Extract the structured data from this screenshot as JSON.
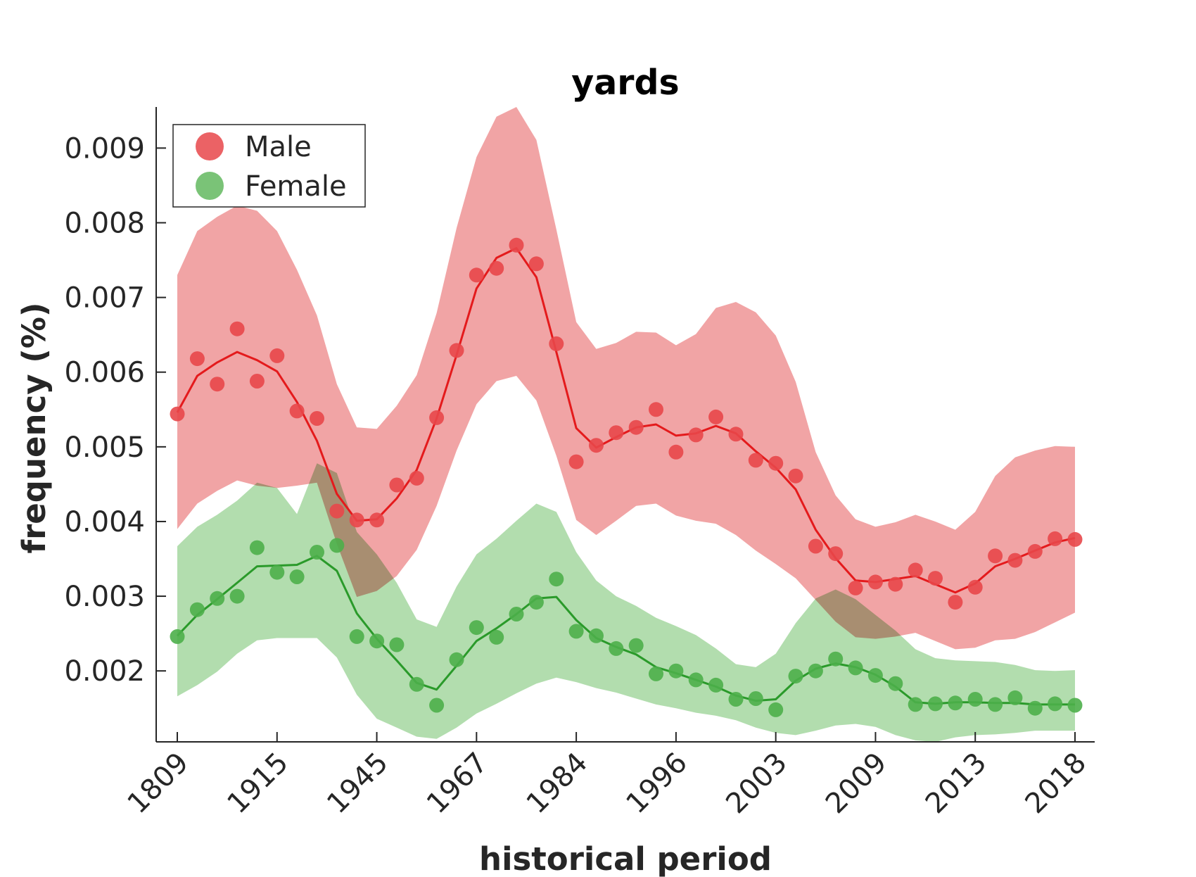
{
  "chart_data": {
    "type": "line",
    "title": "yards",
    "xlabel": "historical period",
    "ylabel": "frequency (%)",
    "ylim": [
      0.00105,
      0.00955
    ],
    "yticks": [
      "0.002",
      "0.003",
      "0.004",
      "0.005",
      "0.006",
      "0.007",
      "0.008",
      "0.009"
    ],
    "ytick_values": [
      0.002,
      0.003,
      0.004,
      0.005,
      0.006,
      0.007,
      0.008,
      0.009
    ],
    "xticks": [
      "1809",
      "1915",
      "1945",
      "1967",
      "1984",
      "1996",
      "2003",
      "2009",
      "2013",
      "2018"
    ],
    "xtick_index": [
      0,
      5,
      10,
      15,
      20,
      25,
      30,
      35,
      40,
      45
    ],
    "n_points": 46,
    "legend_position": "top-left",
    "grid": false,
    "series": [
      {
        "name": "Male",
        "color": "#e41a1c",
        "point_color": "#e8474a",
        "band_color": "#f09a9b",
        "points": [
          0.00544,
          0.00618,
          0.00584,
          0.00658,
          0.00588,
          0.00622,
          0.00548,
          0.00538,
          0.00414,
          0.00402,
          0.00402,
          0.00449,
          0.00458,
          0.00539,
          0.00629,
          0.0073,
          0.00739,
          0.0077,
          0.00745,
          0.00638,
          0.0048,
          0.00502,
          0.00519,
          0.00526,
          0.0055,
          0.00493,
          0.00516,
          0.0054,
          0.00517,
          0.00482,
          0.00478,
          0.00461,
          0.00367,
          0.00357,
          0.00311,
          0.00319,
          0.00316,
          0.00335,
          0.00324,
          0.00292,
          0.00312,
          0.00354,
          0.00348,
          0.0036,
          0.00377,
          0.00376
        ],
        "trend": [
          0.00546,
          0.00595,
          0.00613,
          0.00627,
          0.00616,
          0.00601,
          0.0056,
          0.00508,
          0.00437,
          0.00401,
          0.00403,
          0.00431,
          0.00469,
          0.00538,
          0.00623,
          0.00712,
          0.00753,
          0.00766,
          0.00727,
          0.00627,
          0.00525,
          0.00499,
          0.00513,
          0.00526,
          0.0053,
          0.00515,
          0.00518,
          0.00528,
          0.00518,
          0.00494,
          0.00472,
          0.00443,
          0.00389,
          0.00351,
          0.00321,
          0.00319,
          0.00323,
          0.00327,
          0.00316,
          0.00305,
          0.00317,
          0.0034,
          0.0035,
          0.00361,
          0.00372,
          0.00378
        ],
        "band_upper": [
          0.0073,
          0.00789,
          0.00808,
          0.00823,
          0.00816,
          0.00789,
          0.00737,
          0.00676,
          0.00584,
          0.00526,
          0.00524,
          0.00555,
          0.00596,
          0.00679,
          0.00793,
          0.00888,
          0.00942,
          0.00955,
          0.00911,
          0.00791,
          0.00667,
          0.00631,
          0.00639,
          0.00654,
          0.00653,
          0.00636,
          0.00651,
          0.00686,
          0.00694,
          0.0068,
          0.00649,
          0.00587,
          0.00493,
          0.00435,
          0.00403,
          0.00393,
          0.00399,
          0.00409,
          0.004,
          0.00389,
          0.00413,
          0.00461,
          0.00486,
          0.00495,
          0.00501,
          0.005
        ],
        "band_lower": [
          0.0039,
          0.00424,
          0.00441,
          0.00455,
          0.00448,
          0.00445,
          0.00448,
          0.00452,
          0.0037,
          0.00299,
          0.00307,
          0.00327,
          0.00362,
          0.00421,
          0.00495,
          0.00557,
          0.00588,
          0.00595,
          0.00562,
          0.00488,
          0.00402,
          0.00382,
          0.00401,
          0.00421,
          0.00424,
          0.00408,
          0.00401,
          0.00397,
          0.00382,
          0.00361,
          0.00343,
          0.00324,
          0.00295,
          0.00266,
          0.00245,
          0.00243,
          0.00246,
          0.00251,
          0.0024,
          0.00229,
          0.00231,
          0.00241,
          0.00243,
          0.00252,
          0.00265,
          0.00278
        ]
      },
      {
        "name": "Female",
        "color": "#2a9a2a",
        "point_color": "#4daf4a",
        "band_color": "#aad9a5",
        "points": [
          0.00246,
          0.00282,
          0.00297,
          0.003,
          0.00365,
          0.00332,
          0.00326,
          0.00359,
          0.00368,
          0.00246,
          0.0024,
          0.00235,
          0.00182,
          0.00154,
          0.00215,
          0.00258,
          0.00245,
          0.00276,
          0.00292,
          0.00323,
          0.00253,
          0.00247,
          0.0023,
          0.00234,
          0.00196,
          0.002,
          0.00188,
          0.00181,
          0.00162,
          0.00163,
          0.00148,
          0.00193,
          0.002,
          0.00216,
          0.00204,
          0.00194,
          0.00183,
          0.00155,
          0.00156,
          0.00157,
          0.00162,
          0.00155,
          0.00164,
          0.0015,
          0.00156,
          0.00154
        ],
        "trend": [
          0.00247,
          0.00275,
          0.00296,
          0.00318,
          0.0034,
          0.00341,
          0.00342,
          0.00354,
          0.00334,
          0.00277,
          0.00243,
          0.00214,
          0.00184,
          0.00175,
          0.00207,
          0.0024,
          0.00257,
          0.00276,
          0.00297,
          0.00299,
          0.00268,
          0.00244,
          0.00232,
          0.00222,
          0.00205,
          0.00197,
          0.00188,
          0.00179,
          0.00167,
          0.0016,
          0.00162,
          0.00187,
          0.00203,
          0.0021,
          0.00205,
          0.00195,
          0.00179,
          0.00158,
          0.00156,
          0.00158,
          0.00158,
          0.00157,
          0.00157,
          0.00155,
          0.00155,
          0.00155
        ],
        "band_upper": [
          0.00367,
          0.00393,
          0.00409,
          0.00428,
          0.00452,
          0.00445,
          0.0041,
          0.00478,
          0.00465,
          0.00386,
          0.00356,
          0.00318,
          0.00269,
          0.00259,
          0.00313,
          0.00356,
          0.00377,
          0.00401,
          0.00424,
          0.00413,
          0.00359,
          0.00321,
          0.003,
          0.00287,
          0.00271,
          0.0026,
          0.00248,
          0.0023,
          0.00209,
          0.00205,
          0.00223,
          0.00264,
          0.00297,
          0.00309,
          0.00296,
          0.00275,
          0.00254,
          0.00229,
          0.00217,
          0.00214,
          0.00213,
          0.00212,
          0.00208,
          0.00201,
          0.002,
          0.00201
        ],
        "band_lower": [
          0.00166,
          0.00181,
          0.00199,
          0.00223,
          0.00241,
          0.00244,
          0.00244,
          0.00244,
          0.00218,
          0.00168,
          0.00136,
          0.00124,
          0.00112,
          0.00109,
          0.00124,
          0.00143,
          0.00156,
          0.0017,
          0.00183,
          0.00191,
          0.00185,
          0.00177,
          0.00171,
          0.00163,
          0.00155,
          0.0015,
          0.00144,
          0.0014,
          0.00134,
          0.00124,
          0.00117,
          0.00114,
          0.0012,
          0.00127,
          0.00129,
          0.00125,
          0.00114,
          0.00107,
          0.00105,
          0.00111,
          0.00114,
          0.00115,
          0.00117,
          0.0012,
          0.0012,
          0.0012
        ]
      }
    ]
  }
}
